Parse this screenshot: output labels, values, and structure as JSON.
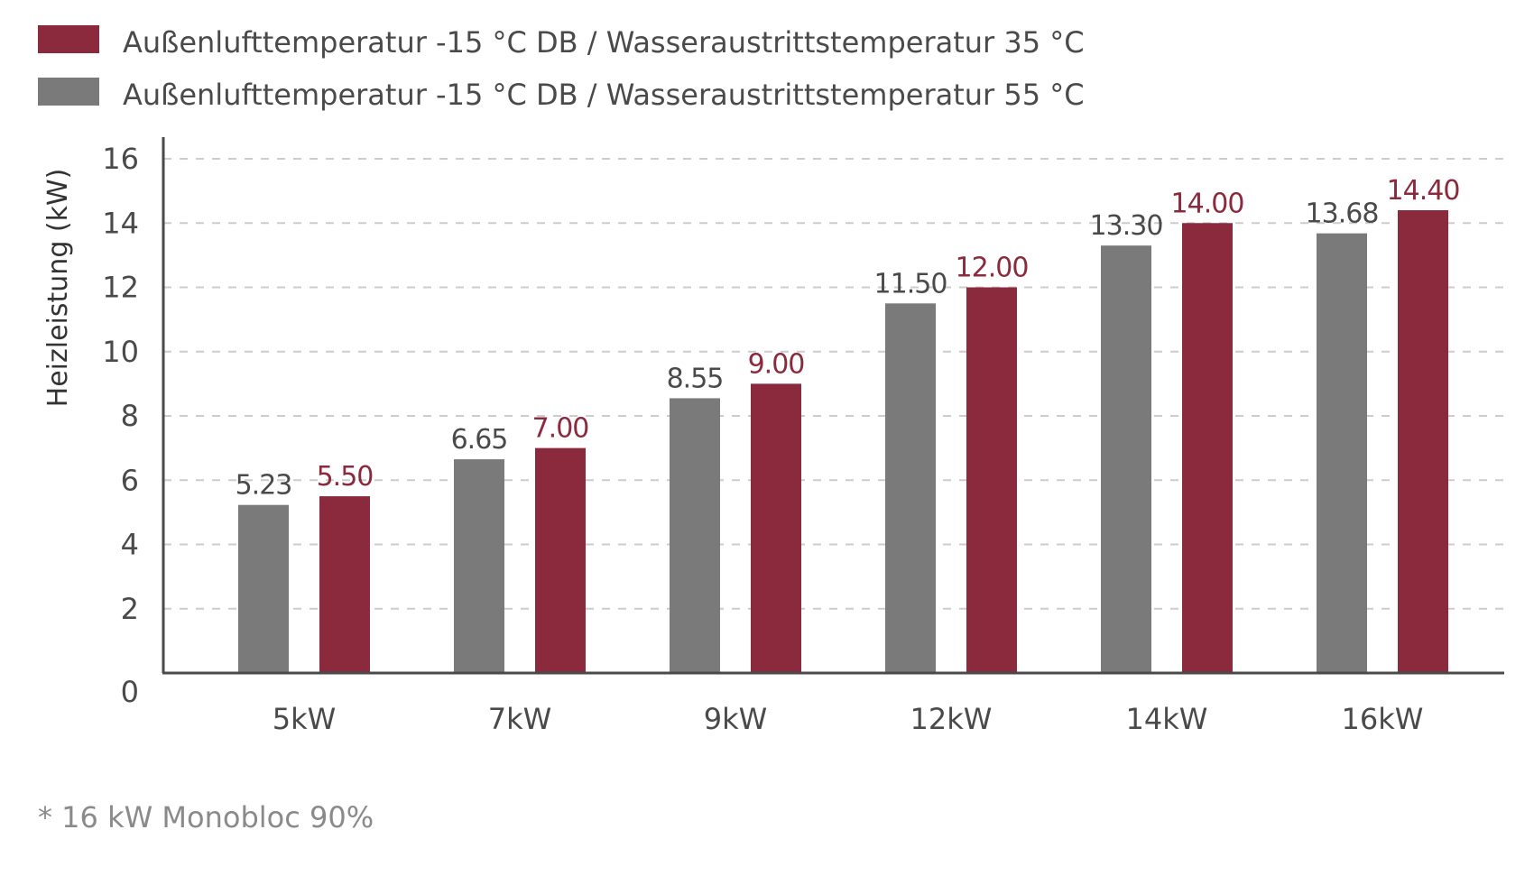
{
  "colors": {
    "series_35": "#8b2a3d",
    "series_55": "#7a7a7a",
    "axis": "#4a4a4a",
    "grid": "#cccccc",
    "text": "#4a4a4a",
    "footnote": "#8a8a8a"
  },
  "legend": [
    {
      "label": "Außenlufttemperatur -15 °C DB / Wasseraustrittstemperatur 35 °C",
      "color": "#8b2a3d"
    },
    {
      "label": "Außenlufttemperatur -15 °C DB / Wasseraustrittstemperatur 55 °C",
      "color": "#7a7a7a"
    }
  ],
  "footnote": "* 16 kW Monobloc 90%",
  "chart_data": {
    "type": "bar",
    "title": "",
    "xlabel": "",
    "ylabel": "Heizleistung (kW)",
    "ylim": [
      0,
      16
    ],
    "yticks": [
      0,
      2,
      4,
      6,
      8,
      10,
      12,
      14,
      16
    ],
    "grid": true,
    "legend_position": "top-left",
    "categories": [
      "5kW",
      "7kW",
      "9kW",
      "12kW",
      "14kW",
      "16kW"
    ],
    "series": [
      {
        "name": "Außenlufttemperatur -15 °C DB / Wasseraustrittstemperatur 55 °C",
        "color": "#7a7a7a",
        "values": [
          5.23,
          6.65,
          8.55,
          11.5,
          13.3,
          13.68
        ],
        "labels": [
          "5.23",
          "6.65",
          "8.55",
          "11.50",
          "13.30",
          "13.68"
        ]
      },
      {
        "name": "Außenlufttemperatur -15 °C DB / Wasseraustrittstemperatur 35 °C",
        "color": "#8b2a3d",
        "values": [
          5.5,
          7.0,
          9.0,
          12.0,
          14.0,
          14.4
        ],
        "labels": [
          "5.50",
          "7.00",
          "9.00",
          "12.00",
          "14.00",
          "14.40"
        ]
      }
    ]
  }
}
